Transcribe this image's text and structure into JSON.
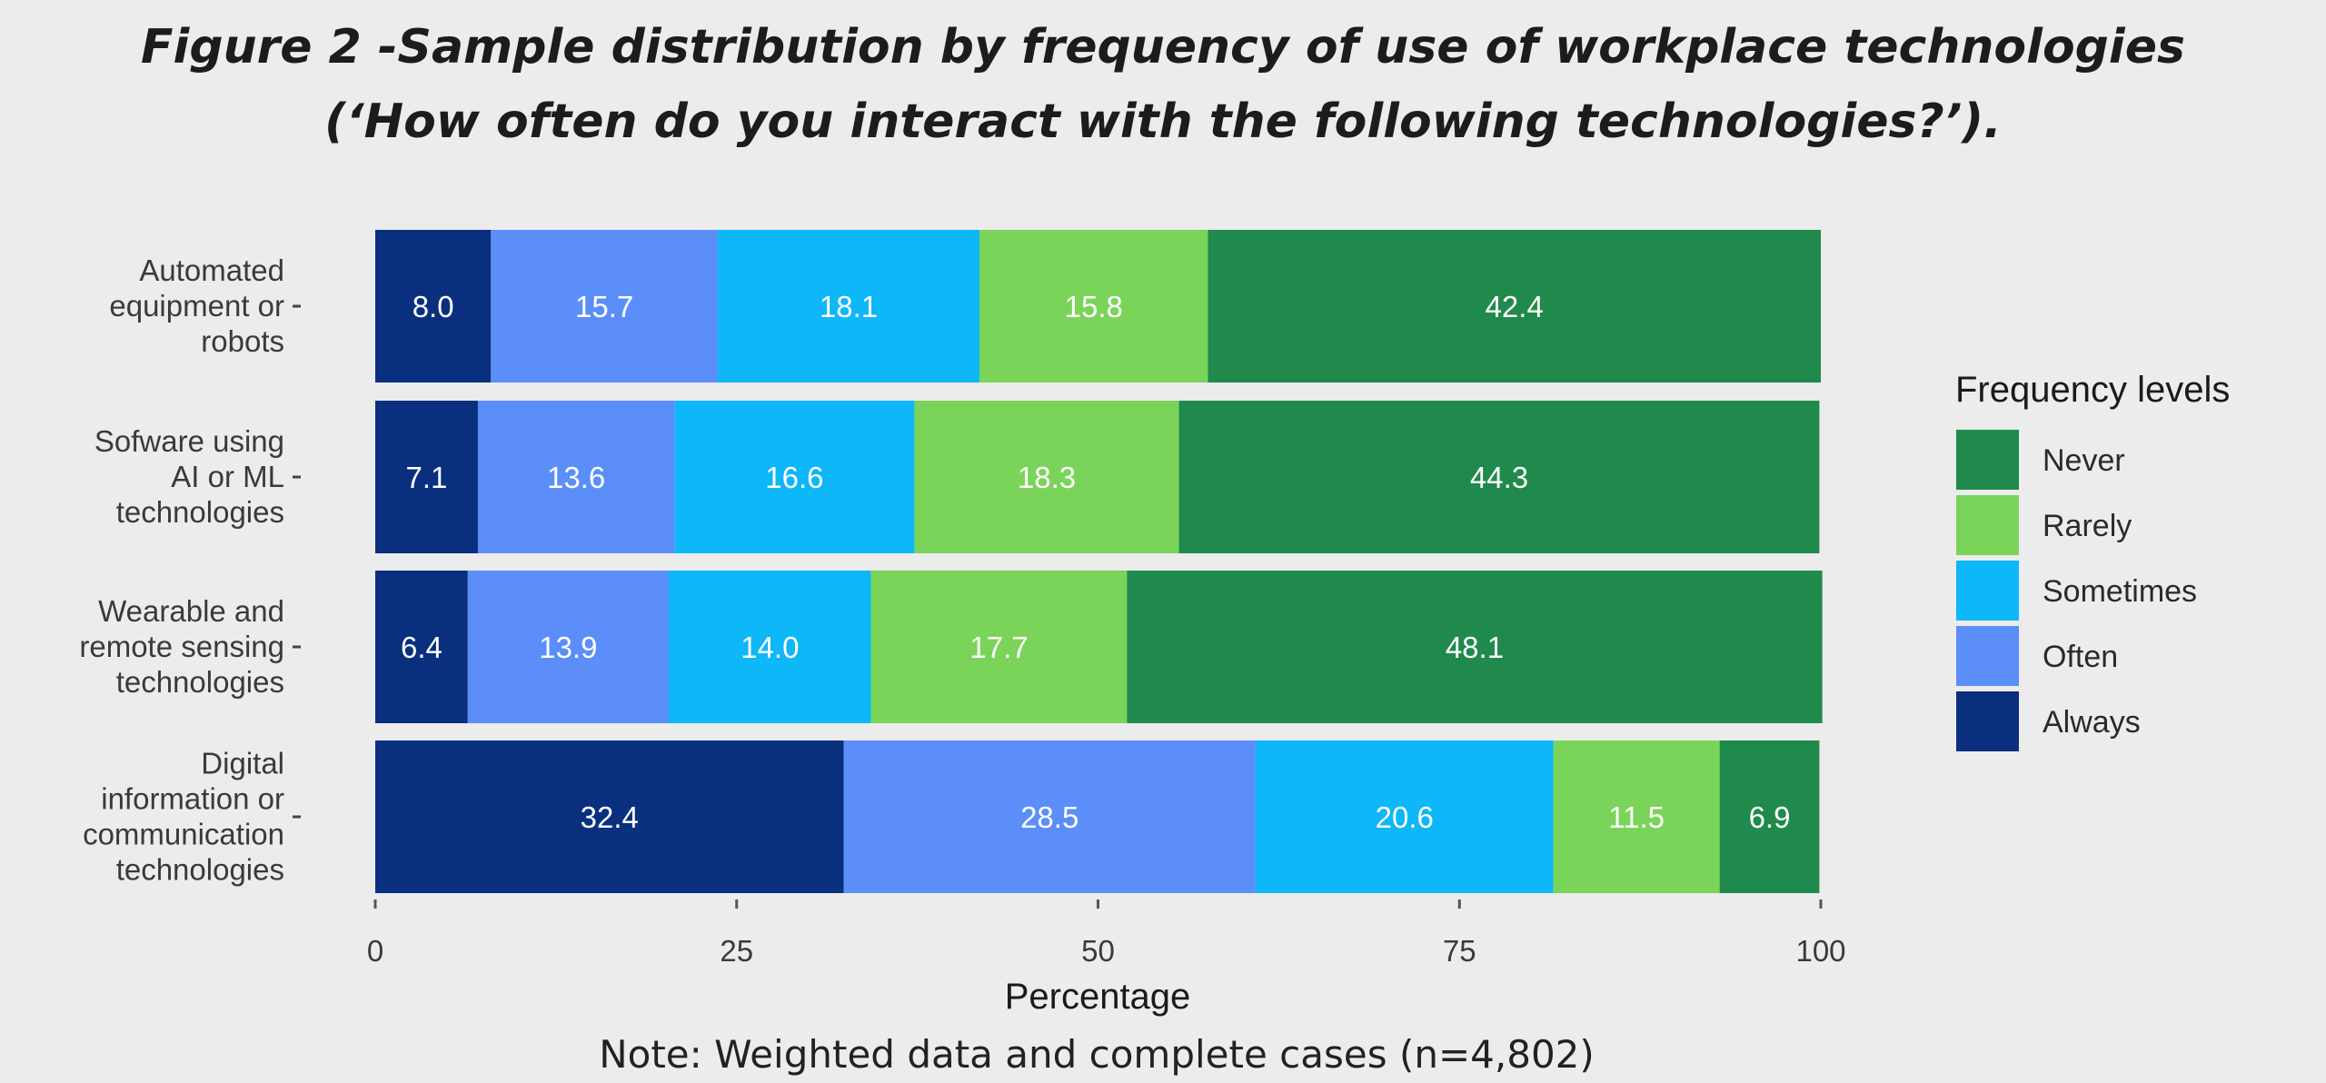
{
  "title": "Figure 2 -Sample distribution by frequency of use of workplace technologies",
  "subtitle": "(‘How often do you interact with the following technologies?’).",
  "note": "Note: Weighted data and complete cases (n=4,802)",
  "chart_data": {
    "type": "bar",
    "orientation": "horizontal",
    "stacked": true,
    "categories": [
      "Automated equipment or robots",
      "Sofware using AI or ML technologies",
      "Wearable and remote sensing technologies",
      "Digital information or communication technologies"
    ],
    "category_label_lines": [
      [
        "Automated",
        "equipment or",
        "robots"
      ],
      [
        "Sofware using",
        "AI or ML",
        "technologies"
      ],
      [
        "Wearable and",
        "remote sensing",
        "technologies"
      ],
      [
        "Digital",
        "information or",
        "communication",
        "technologies"
      ]
    ],
    "series": [
      {
        "name": "Always",
        "color": "#0a2f7e",
        "values": [
          8.0,
          7.1,
          6.4,
          32.4
        ]
      },
      {
        "name": "Often",
        "color": "#5b8ef8",
        "values": [
          15.7,
          13.6,
          13.9,
          28.5
        ]
      },
      {
        "name": "Sometimes",
        "color": "#0db7f8",
        "values": [
          18.1,
          16.6,
          14.0,
          20.6
        ]
      },
      {
        "name": "Rarely",
        "color": "#7bd45a",
        "values": [
          15.8,
          18.3,
          17.7,
          11.5
        ]
      },
      {
        "name": "Never",
        "color": "#1f8a4c",
        "values": [
          42.4,
          44.3,
          48.1,
          6.9
        ]
      }
    ],
    "xlabel": "Percentage",
    "ylabel": "",
    "xlim": [
      0,
      100
    ],
    "xticks": [
      0,
      25,
      50,
      75,
      100
    ],
    "legend": {
      "title": "Frequency levels",
      "order": [
        "Never",
        "Rarely",
        "Sometimes",
        "Often",
        "Always"
      ],
      "placement": "right"
    },
    "grid": false
  }
}
